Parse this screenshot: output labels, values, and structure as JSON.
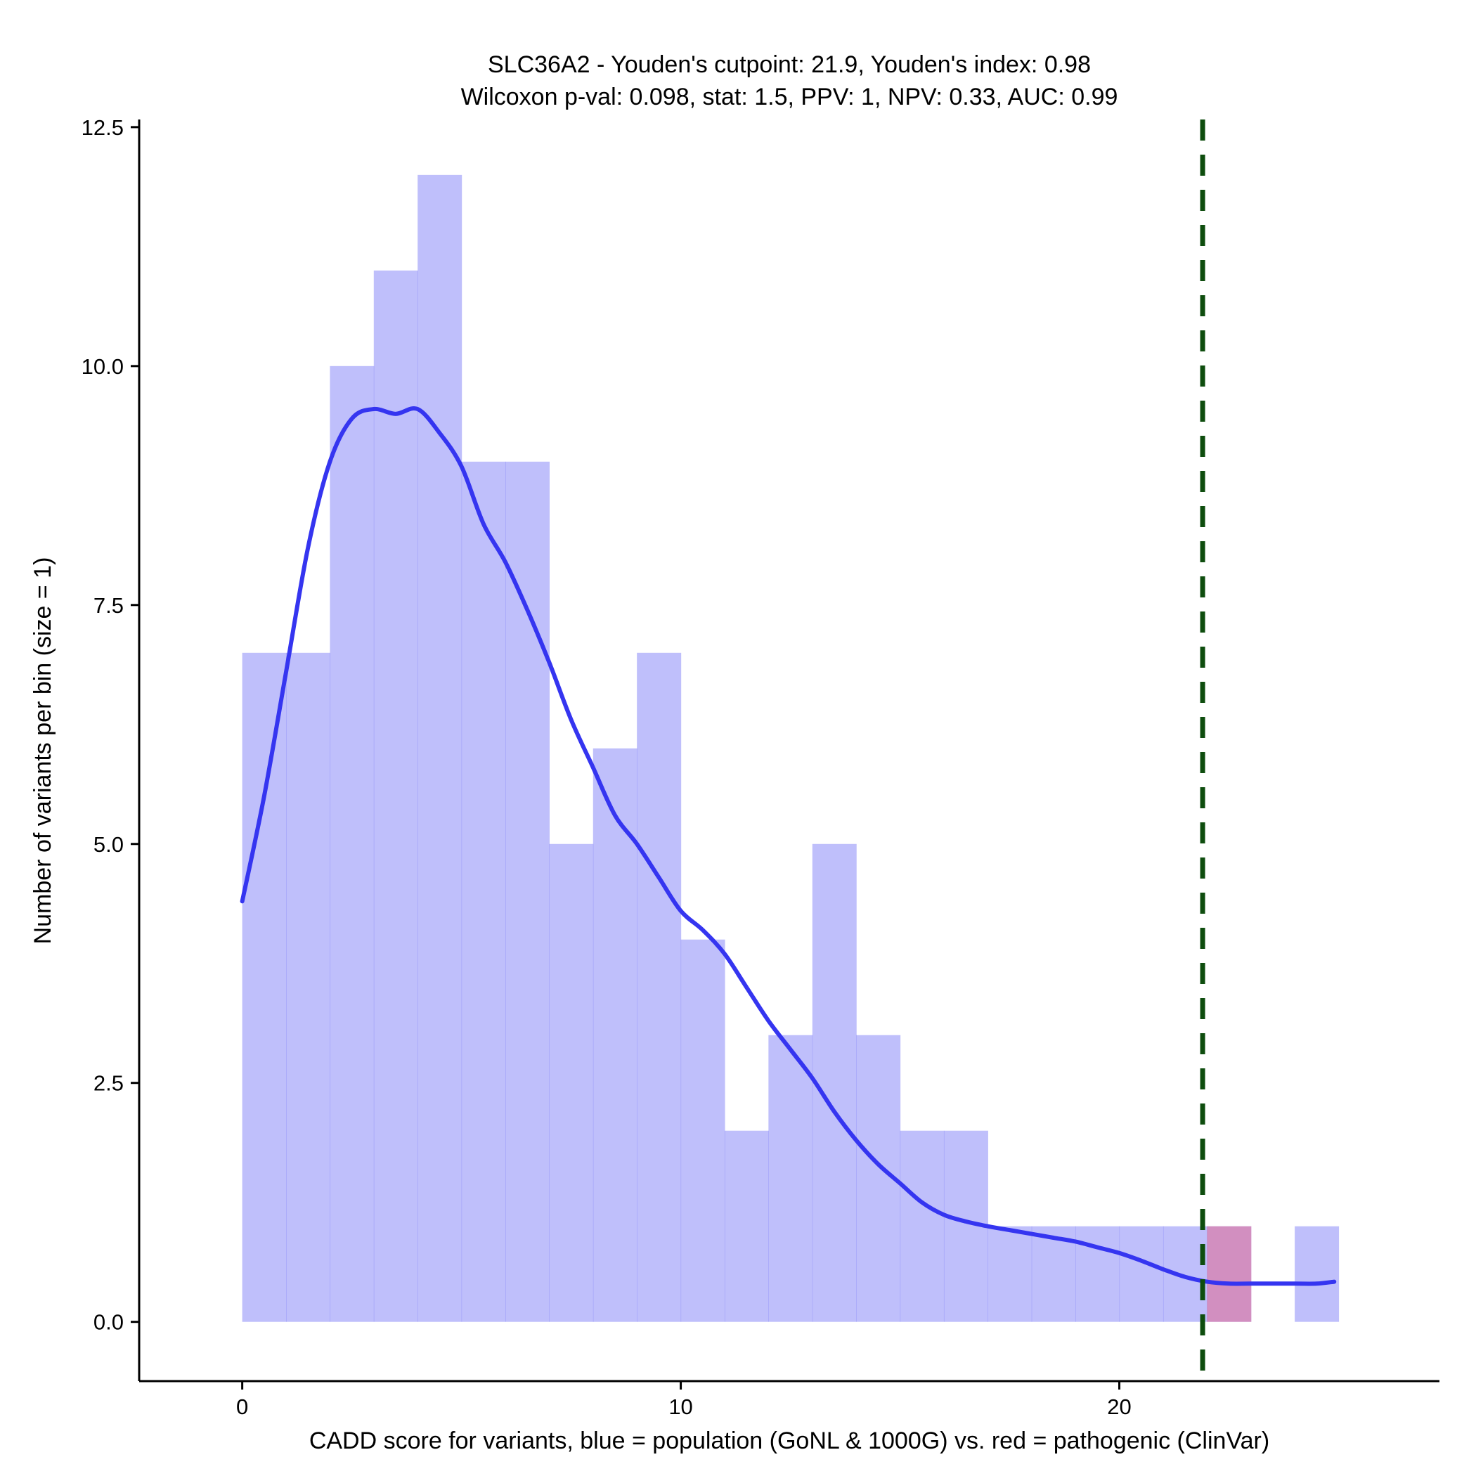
{
  "chart_data": {
    "type": "bar",
    "title_line1": "SLC36A2 - Youden's cutpoint: 21.9, Youden's index: 0.98",
    "title_line2": "Wilcoxon p-val: 0.098, stat: 1.5, PPV: 1, NPV: 0.33, AUC: 0.99",
    "xlabel": "CADD score for variants, blue = population (GoNL & 1000G) vs. red = pathogenic (ClinVar)",
    "ylabel": "Number of variants per bin (size = 1)",
    "xlim": [
      -2.35,
      27.3
    ],
    "ylim": [
      -0.62,
      12.58
    ],
    "xticks": [
      0,
      10,
      20
    ],
    "xtick_labels": [
      "0",
      "10",
      "20"
    ],
    "yticks": [
      0,
      2.5,
      5,
      7.5,
      10,
      12.5
    ],
    "ytick_labels": [
      "0.0",
      "2.5",
      "5.0",
      "7.5",
      "10.0",
      "12.5"
    ],
    "bin_width": 1,
    "series": [
      {
        "name": "population (GoNL & 1000G)",
        "color": "#8080f8",
        "bins": [
          {
            "x0": 0,
            "count": 7
          },
          {
            "x0": 1,
            "count": 7
          },
          {
            "x0": 2,
            "count": 10
          },
          {
            "x0": 3,
            "count": 11
          },
          {
            "x0": 4,
            "count": 12
          },
          {
            "x0": 5,
            "count": 9
          },
          {
            "x0": 6,
            "count": 9
          },
          {
            "x0": 7,
            "count": 5
          },
          {
            "x0": 8,
            "count": 6
          },
          {
            "x0": 9,
            "count": 7
          },
          {
            "x0": 10,
            "count": 4
          },
          {
            "x0": 11,
            "count": 2
          },
          {
            "x0": 12,
            "count": 3
          },
          {
            "x0": 13,
            "count": 5
          },
          {
            "x0": 14,
            "count": 3
          },
          {
            "x0": 15,
            "count": 2
          },
          {
            "x0": 16,
            "count": 2
          },
          {
            "x0": 17,
            "count": 1
          },
          {
            "x0": 18,
            "count": 1
          },
          {
            "x0": 19,
            "count": 1
          },
          {
            "x0": 20,
            "count": 1
          },
          {
            "x0": 21,
            "count": 1
          },
          {
            "x0": 22,
            "count": 1
          },
          {
            "x0": 24,
            "count": 1
          }
        ]
      },
      {
        "name": "pathogenic (ClinVar)",
        "color": "#e0709a",
        "bins": [
          {
            "x0": 22,
            "count": 1
          }
        ]
      }
    ],
    "density_curve": {
      "color": "#3535f0",
      "x": [
        0,
        0.5,
        1,
        1.5,
        2,
        2.5,
        3,
        3.5,
        4,
        4.5,
        5,
        5.5,
        6,
        6.5,
        7,
        7.5,
        8,
        8.5,
        9,
        9.5,
        10,
        10.5,
        11,
        11.5,
        12,
        12.5,
        13,
        13.5,
        14,
        14.5,
        15,
        15.5,
        16,
        16.5,
        17,
        17.5,
        18,
        18.5,
        19,
        19.5,
        20,
        20.5,
        21,
        21.5,
        22,
        22.5,
        23,
        23.5,
        24,
        24.5,
        24.9
      ],
      "y": [
        4.4,
        5.5,
        6.8,
        8.1,
        9.0,
        9.45,
        9.55,
        9.5,
        9.55,
        9.3,
        8.95,
        8.35,
        7.95,
        7.45,
        6.9,
        6.3,
        5.8,
        5.3,
        5.0,
        4.65,
        4.3,
        4.1,
        3.85,
        3.5,
        3.15,
        2.85,
        2.55,
        2.2,
        1.9,
        1.65,
        1.45,
        1.25,
        1.12,
        1.05,
        1.0,
        0.96,
        0.92,
        0.88,
        0.84,
        0.78,
        0.72,
        0.64,
        0.55,
        0.47,
        0.42,
        0.4,
        0.4,
        0.4,
        0.4,
        0.4,
        0.42
      ]
    },
    "cutpoint": {
      "x": 21.9,
      "color": "#0e4d0e",
      "style": "dashed"
    },
    "grid": false,
    "legend": "none"
  }
}
